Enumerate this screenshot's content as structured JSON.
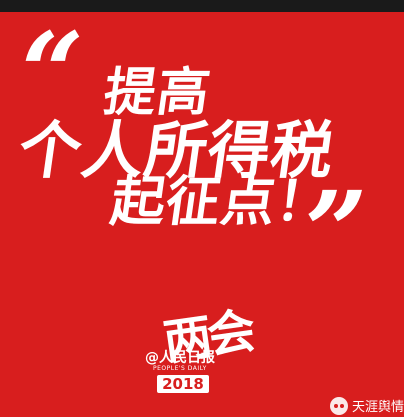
{
  "poster": {
    "background_color": "#d81e1e",
    "quote_open": "“",
    "quote_close": "”",
    "headline": {
      "line1": "提高",
      "line2": "个人所得税",
      "line3": "起征点！"
    }
  },
  "emblem": {
    "calligraphy": "两会",
    "brand": "@人民日报",
    "brand_sub": "PEOPLE'S DAILY",
    "year": "2018"
  },
  "watermark": {
    "icon": "wechat-icon",
    "text": "天涯舆情"
  }
}
